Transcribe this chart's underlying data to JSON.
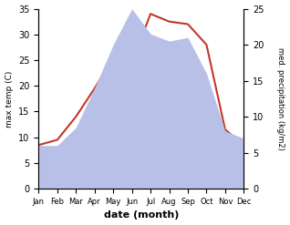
{
  "months": [
    "Jan",
    "Feb",
    "Mar",
    "Apr",
    "May",
    "Jun",
    "Jul",
    "Aug",
    "Sep",
    "Oct",
    "Nov",
    "Dec"
  ],
  "temp_max": [
    8.5,
    9.5,
    14.0,
    19.5,
    25.5,
    24.5,
    34.0,
    32.5,
    32.0,
    28.0,
    11.5,
    8.5
  ],
  "precipitation": [
    6.0,
    6.0,
    8.5,
    14.0,
    20.0,
    25.0,
    21.5,
    20.5,
    21.0,
    16.0,
    8.0,
    7.0
  ],
  "temp_color": "#c0392b",
  "precip_fill_color": "#b8c0e8",
  "temp_ylim": [
    0,
    35
  ],
  "precip_ylim": [
    0,
    25
  ],
  "temp_yticks": [
    0,
    5,
    10,
    15,
    20,
    25,
    30,
    35
  ],
  "precip_yticks": [
    0,
    5,
    10,
    15,
    20,
    25
  ],
  "xlabel": "date (month)",
  "ylabel_left": "max temp (C)",
  "ylabel_right": "med. precipitation (kg/m2)",
  "bg_color": "#ffffff"
}
